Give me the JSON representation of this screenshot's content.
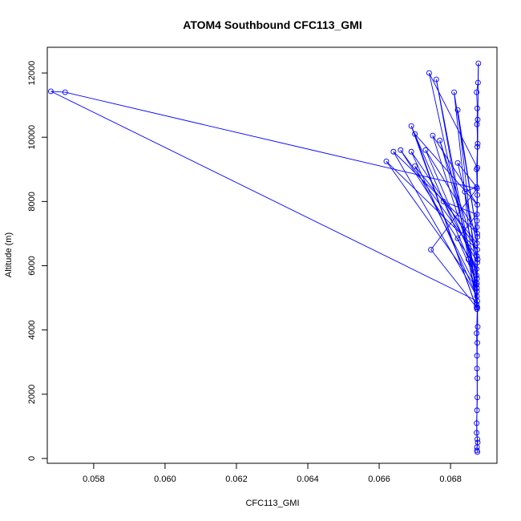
{
  "chart_data": {
    "type": "scatter",
    "title": "ATOM4 Southbound CFC113_GMI",
    "xlabel": "CFC113_GMI",
    "ylabel": "Altitude (m)",
    "xlim": [
      0.0567,
      0.0693
    ],
    "ylim": [
      -150,
      12800
    ],
    "x_ticks": [
      0.058,
      0.06,
      0.062,
      0.064,
      0.066,
      0.068
    ],
    "x_tick_labels": [
      "0.058",
      "0.060",
      "0.062",
      "0.064",
      "0.066",
      "0.068"
    ],
    "y_ticks": [
      0,
      2000,
      4000,
      6000,
      8000,
      10000,
      12000
    ],
    "y_tick_labels": [
      "0",
      "2000",
      "4000",
      "6000",
      "8000",
      "10000",
      "12000"
    ],
    "series": [
      {
        "color": "#0000ff",
        "marker": "open-circle",
        "line": true,
        "points": [
          [
            0.06875,
            200
          ],
          [
            0.06874,
            350
          ],
          [
            0.06876,
            500
          ],
          [
            0.06873,
            800
          ],
          [
            0.06874,
            1500
          ],
          [
            0.06875,
            2500
          ],
          [
            0.06874,
            3200
          ],
          [
            0.06873,
            3900
          ],
          [
            0.06875,
            4700
          ],
          [
            0.06872,
            5400
          ],
          [
            0.06876,
            6200
          ],
          [
            0.06874,
            7200
          ],
          [
            0.06875,
            8200
          ],
          [
            0.06873,
            9000
          ],
          [
            0.06876,
            9800
          ],
          [
            0.06874,
            10400
          ],
          [
            0.06875,
            10900
          ],
          [
            0.06873,
            11400
          ],
          [
            0.06877,
            11700
          ],
          [
            0.06878,
            12300
          ],
          [
            0.06875,
            9050
          ],
          [
            0.0674,
            12000
          ],
          [
            0.06874,
            5200
          ],
          [
            0.0676,
            11800
          ],
          [
            0.06873,
            4800
          ],
          [
            0.0681,
            11400
          ],
          [
            0.06875,
            6900
          ],
          [
            0.0682,
            10850
          ],
          [
            0.06874,
            5600
          ],
          [
            0.0669,
            10350
          ],
          [
            0.06874,
            4650
          ],
          [
            0.067,
            10100
          ],
          [
            0.06875,
            7900
          ],
          [
            0.0675,
            10050
          ],
          [
            0.06873,
            5700
          ],
          [
            0.0677,
            9900
          ],
          [
            0.06874,
            6300
          ],
          [
            0.0666,
            9600
          ],
          [
            0.06873,
            5900
          ],
          [
            0.0673,
            9600
          ],
          [
            0.06875,
            7000
          ],
          [
            0.0664,
            9550
          ],
          [
            0.06874,
            5050
          ],
          [
            0.0669,
            9550
          ],
          [
            0.06875,
            6500
          ],
          [
            0.0662,
            9250
          ],
          [
            0.06874,
            5300
          ],
          [
            0.067,
            9100
          ],
          [
            0.06874,
            6700
          ],
          [
            0.0682,
            9200
          ],
          [
            0.06873,
            8450
          ],
          [
            0.0684,
            8300
          ],
          [
            0.06875,
            6100
          ],
          [
            0.0678,
            8000
          ],
          [
            0.06874,
            7600
          ],
          [
            0.0682,
            6850
          ],
          [
            0.06874,
            5450
          ],
          [
            0.0685,
            6200
          ],
          [
            0.06875,
            4900
          ],
          [
            0.0568,
            11430
          ],
          [
            0.0572,
            11400
          ],
          [
            0.06874,
            8400
          ],
          [
            0.06745,
            6500
          ],
          [
            0.06873,
            4700
          ],
          [
            0.06876,
            10550
          ],
          [
            0.06875,
            9700
          ],
          [
            0.06874,
            7400
          ],
          [
            0.06876,
            4100
          ],
          [
            0.06875,
            3600
          ],
          [
            0.06874,
            2800
          ],
          [
            0.06875,
            1900
          ],
          [
            0.06873,
            1100
          ],
          [
            0.06875,
            600
          ],
          [
            0.06874,
            250
          ]
        ]
      }
    ]
  }
}
